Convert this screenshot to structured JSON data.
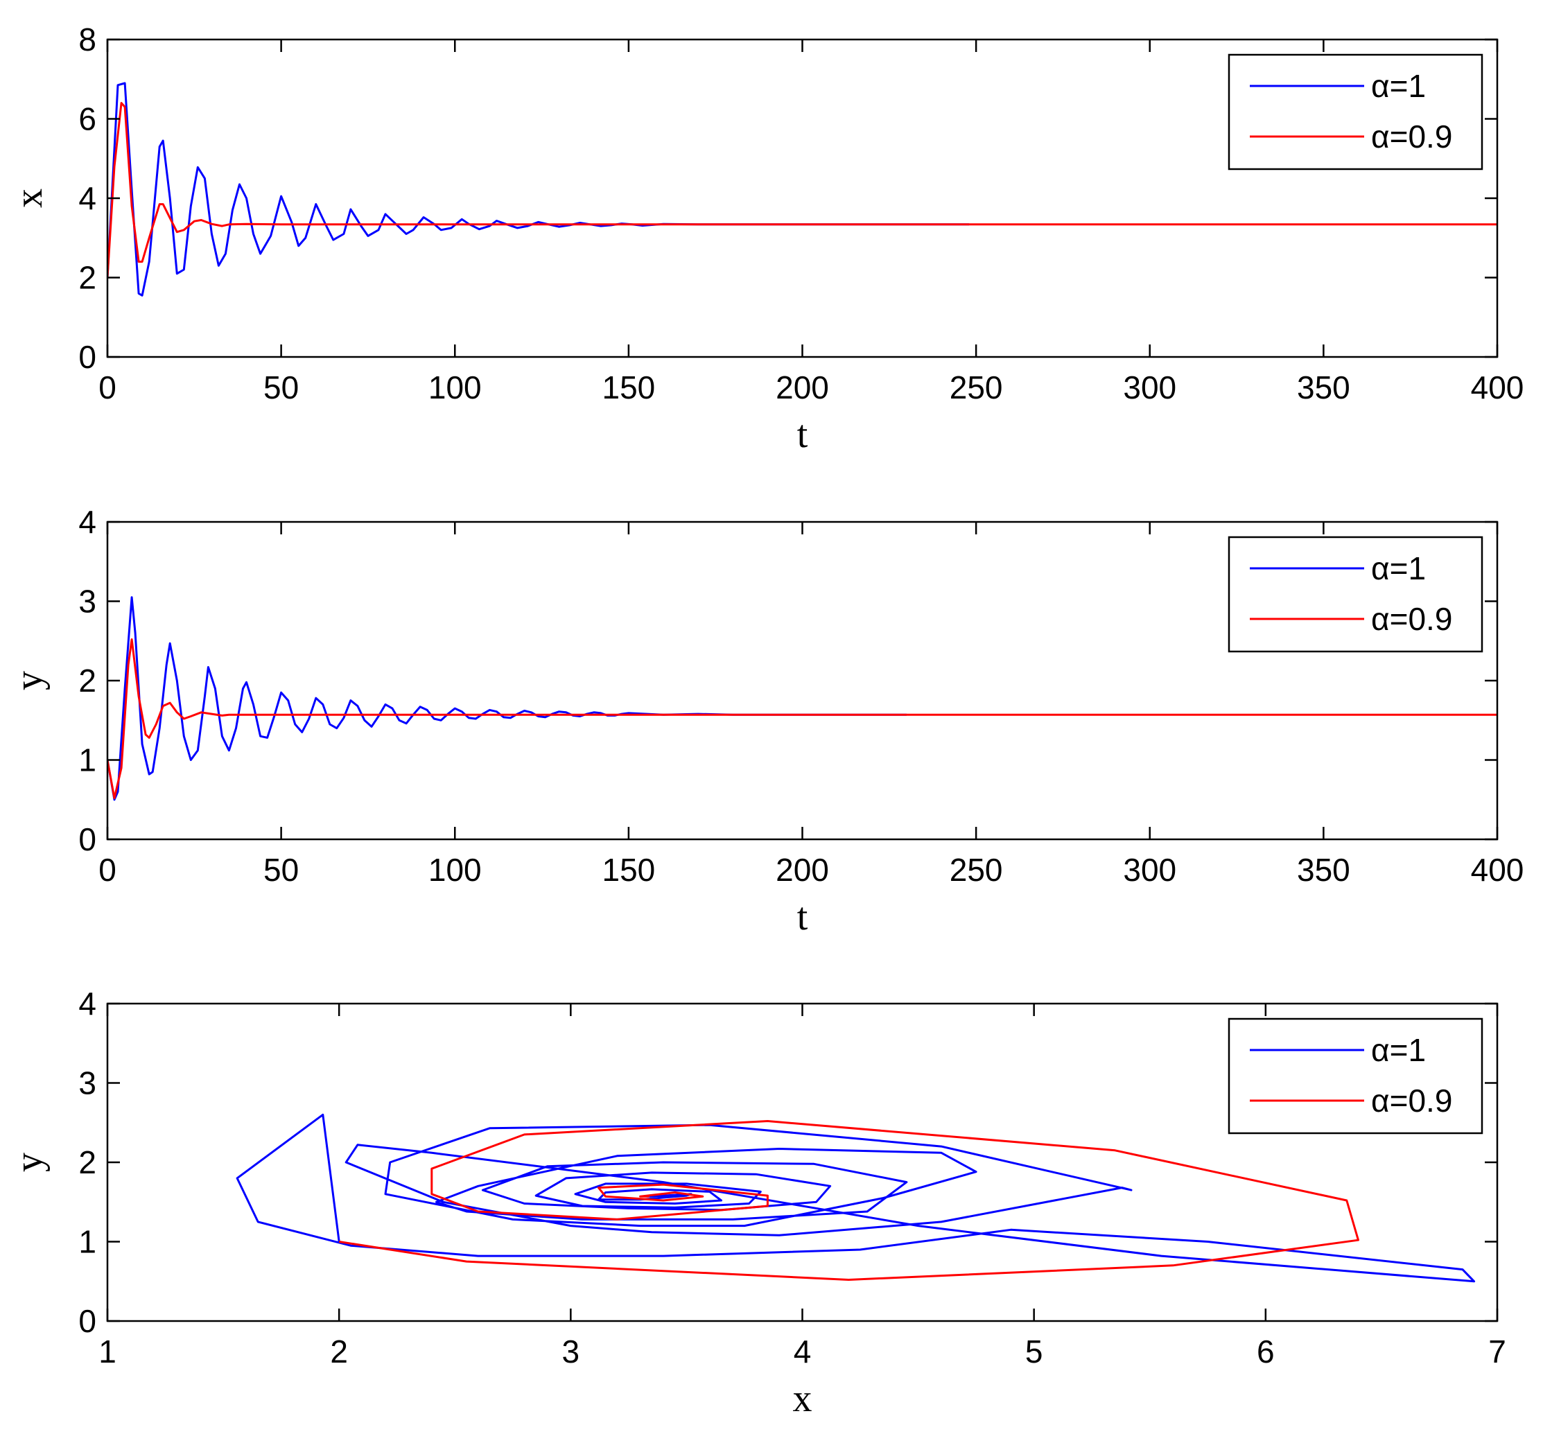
{
  "chart_data": [
    {
      "type": "line",
      "xlabel": "t",
      "ylabel": "x",
      "xlim": [
        0,
        400
      ],
      "ylim": [
        0,
        8
      ],
      "xticks": [
        "0",
        "50",
        "100",
        "150",
        "200",
        "250",
        "300",
        "350",
        "400"
      ],
      "yticks": [
        "0",
        "2",
        "4",
        "6",
        "8"
      ],
      "legend_position": "top-right",
      "series": [
        {
          "name": "α=1",
          "color": "#0000ff",
          "x": [
            0,
            3,
            5,
            7,
            9,
            10,
            12,
            15,
            16,
            18,
            20,
            22,
            24,
            26,
            28,
            30,
            32,
            34,
            36,
            38,
            40,
            42,
            44,
            47,
            50,
            53,
            55,
            57,
            60,
            63,
            65,
            68,
            70,
            73,
            75,
            78,
            80,
            83,
            86,
            88,
            91,
            94,
            96,
            99,
            102,
            104,
            107,
            110,
            112,
            115,
            118,
            121,
            124,
            127,
            130,
            133,
            136,
            139,
            142,
            145,
            148,
            151,
            154,
            157,
            160,
            170,
            180,
            190,
            200,
            215,
            230,
            248
          ],
          "y": [
            2.0,
            6.85,
            6.9,
            4.2,
            1.6,
            1.55,
            2.4,
            5.3,
            5.45,
            4.0,
            2.1,
            2.2,
            3.8,
            4.78,
            4.5,
            3.1,
            2.3,
            2.6,
            3.7,
            4.35,
            4.0,
            3.1,
            2.6,
            3.05,
            4.05,
            3.4,
            2.8,
            3.0,
            3.85,
            3.3,
            2.95,
            3.1,
            3.72,
            3.3,
            3.05,
            3.2,
            3.6,
            3.35,
            3.1,
            3.2,
            3.52,
            3.35,
            3.2,
            3.25,
            3.47,
            3.35,
            3.22,
            3.3,
            3.43,
            3.34,
            3.25,
            3.3,
            3.4,
            3.34,
            3.28,
            3.32,
            3.38,
            3.34,
            3.3,
            3.32,
            3.36,
            3.34,
            3.31,
            3.33,
            3.35,
            3.34,
            3.34,
            3.34,
            3.34,
            3.34,
            3.34,
            3.34
          ]
        },
        {
          "name": "α=0.9",
          "color": "#ff0000",
          "x": [
            0,
            2,
            4,
            5,
            7,
            9,
            10,
            12,
            15,
            16,
            18,
            20,
            22,
            25,
            27,
            30,
            33,
            35,
            40,
            50,
            60,
            80,
            100,
            150,
            200,
            300,
            400
          ],
          "y": [
            2.0,
            4.8,
            6.4,
            6.3,
            3.8,
            2.4,
            2.4,
            3.0,
            3.85,
            3.85,
            3.5,
            3.15,
            3.2,
            3.42,
            3.45,
            3.35,
            3.3,
            3.34,
            3.35,
            3.34,
            3.34,
            3.34,
            3.34,
            3.34,
            3.34,
            3.34,
            3.34
          ]
        }
      ]
    },
    {
      "type": "line",
      "xlabel": "t",
      "ylabel": "y",
      "xlim": [
        0,
        400
      ],
      "ylim": [
        0,
        4
      ],
      "xticks": [
        "0",
        "50",
        "100",
        "150",
        "200",
        "250",
        "300",
        "350",
        "400"
      ],
      "yticks": [
        "0",
        "1",
        "2",
        "3",
        "4"
      ],
      "legend_position": "top-right",
      "series": [
        {
          "name": "α=1",
          "color": "#0000ff",
          "x": [
            0,
            2,
            3,
            5,
            7,
            8,
            10,
            12,
            13,
            15,
            17,
            18,
            20,
            22,
            24,
            26,
            28,
            29,
            31,
            33,
            35,
            37,
            39,
            40,
            42,
            44,
            46,
            48,
            50,
            52,
            54,
            56,
            58,
            60,
            62,
            64,
            66,
            68,
            70,
            72,
            74,
            76,
            78,
            80,
            82,
            84,
            86,
            88,
            90,
            92,
            94,
            96,
            98,
            100,
            102,
            104,
            106,
            108,
            110,
            112,
            114,
            116,
            118,
            120,
            122,
            124,
            126,
            128,
            130,
            132,
            134,
            136,
            138,
            140,
            142,
            144,
            146,
            148,
            150,
            160,
            170,
            180,
            190,
            200,
            215,
            230
          ],
          "y": [
            1.0,
            0.5,
            0.6,
            1.9,
            3.05,
            2.6,
            1.2,
            0.82,
            0.85,
            1.4,
            2.2,
            2.47,
            2.0,
            1.3,
            1.0,
            1.12,
            1.8,
            2.17,
            1.9,
            1.3,
            1.12,
            1.4,
            1.9,
            1.98,
            1.7,
            1.3,
            1.28,
            1.55,
            1.85,
            1.75,
            1.45,
            1.35,
            1.52,
            1.78,
            1.7,
            1.45,
            1.4,
            1.53,
            1.75,
            1.68,
            1.5,
            1.42,
            1.55,
            1.7,
            1.65,
            1.5,
            1.46,
            1.57,
            1.67,
            1.63,
            1.52,
            1.5,
            1.58,
            1.65,
            1.61,
            1.53,
            1.52,
            1.58,
            1.63,
            1.61,
            1.54,
            1.53,
            1.58,
            1.62,
            1.6,
            1.55,
            1.54,
            1.58,
            1.61,
            1.6,
            1.56,
            1.55,
            1.58,
            1.6,
            1.59,
            1.56,
            1.56,
            1.58,
            1.59,
            1.57,
            1.58,
            1.57,
            1.57,
            1.57,
            1.57,
            1.57
          ]
        },
        {
          "name": "α=0.9",
          "color": "#ff0000",
          "x": [
            0,
            2,
            4,
            6,
            7,
            9,
            11,
            12,
            14,
            16,
            18,
            20,
            22,
            24,
            27,
            30,
            33,
            35,
            40,
            50,
            60,
            80,
            100,
            150,
            200,
            300,
            400
          ],
          "y": [
            1.0,
            0.52,
            0.9,
            2.2,
            2.52,
            1.8,
            1.32,
            1.28,
            1.45,
            1.68,
            1.72,
            1.6,
            1.52,
            1.55,
            1.6,
            1.58,
            1.56,
            1.57,
            1.57,
            1.57,
            1.57,
            1.57,
            1.57,
            1.57,
            1.57,
            1.57,
            1.57
          ]
        }
      ]
    },
    {
      "type": "line",
      "xlabel": "x",
      "ylabel": "y",
      "xlim": [
        1,
        7
      ],
      "ylim": [
        0,
        4
      ],
      "xticks": [
        "1",
        "2",
        "3",
        "4",
        "5",
        "6",
        "7"
      ],
      "yticks": [
        "0",
        "1",
        "2",
        "3",
        "4"
      ],
      "legend_position": "top-right",
      "series": [
        {
          "name": "α=1",
          "color": "#0000ff",
          "x": [
            2.0,
            1.93,
            1.56,
            1.65,
            2.05,
            2.6,
            3.4,
            4.25,
            4.9,
            5.75,
            6.85,
            6.9,
            5.55,
            4.5,
            3.4,
            2.4,
            2.08,
            2.03,
            2.45,
            3.0,
            3.35,
            3.9,
            4.6,
            5.38,
            5.42,
            4.6,
            3.6,
            2.65,
            2.22,
            2.2,
            2.75,
            3.3,
            3.75,
            4.35,
            4.75,
            4.6,
            3.9,
            3.2,
            2.6,
            2.42,
            2.55,
            3.05,
            3.7,
            4.28,
            4.45,
            4.05,
            3.4,
            2.9,
            2.62,
            2.8,
            3.25,
            3.65,
            4.06,
            4.12,
            3.8,
            3.35,
            2.98,
            2.85,
            3.05,
            3.45,
            3.77,
            3.82,
            3.5,
            3.15,
            3.02,
            3.15,
            3.45,
            3.65,
            3.6,
            3.35,
            3.15,
            3.12,
            3.3,
            3.5,
            3.52,
            3.34
          ],
          "y": [
            1.0,
            2.6,
            1.8,
            1.25,
            0.95,
            0.82,
            0.82,
            0.9,
            1.15,
            1.0,
            0.65,
            0.5,
            0.82,
            1.2,
            1.75,
            2.12,
            2.22,
            2.0,
            1.5,
            1.2,
            1.12,
            1.08,
            1.25,
            1.68,
            1.65,
            2.2,
            2.47,
            2.43,
            2.0,
            1.6,
            1.28,
            1.2,
            1.2,
            1.55,
            1.88,
            2.12,
            2.17,
            2.08,
            1.7,
            1.5,
            1.38,
            1.28,
            1.28,
            1.38,
            1.75,
            1.98,
            2.0,
            1.95,
            1.65,
            1.48,
            1.42,
            1.4,
            1.5,
            1.7,
            1.85,
            1.87,
            1.8,
            1.58,
            1.45,
            1.43,
            1.48,
            1.63,
            1.73,
            1.73,
            1.6,
            1.5,
            1.48,
            1.52,
            1.63,
            1.66,
            1.62,
            1.53,
            1.53,
            1.58,
            1.6,
            1.57
          ],
          "value_note": "spiral trajectory converging to (3.34, 1.57)"
        },
        {
          "name": "α=0.9",
          "color": "#ff0000",
          "x": [
            2.0,
            2.55,
            4.2,
            5.6,
            6.4,
            6.35,
            5.35,
            3.85,
            2.8,
            2.4,
            2.4,
            2.6,
            3.2,
            3.85,
            3.85,
            3.4,
            3.12,
            3.15,
            3.4,
            3.57,
            3.45,
            3.3,
            3.34
          ],
          "y": [
            1.0,
            0.75,
            0.52,
            0.7,
            1.02,
            1.52,
            2.15,
            2.52,
            2.35,
            1.92,
            1.6,
            1.38,
            1.28,
            1.45,
            1.58,
            1.72,
            1.68,
            1.57,
            1.52,
            1.57,
            1.62,
            1.57,
            1.57
          ],
          "value_note": "spiral trajectory converging to (3.34, 1.57)"
        }
      ]
    }
  ]
}
